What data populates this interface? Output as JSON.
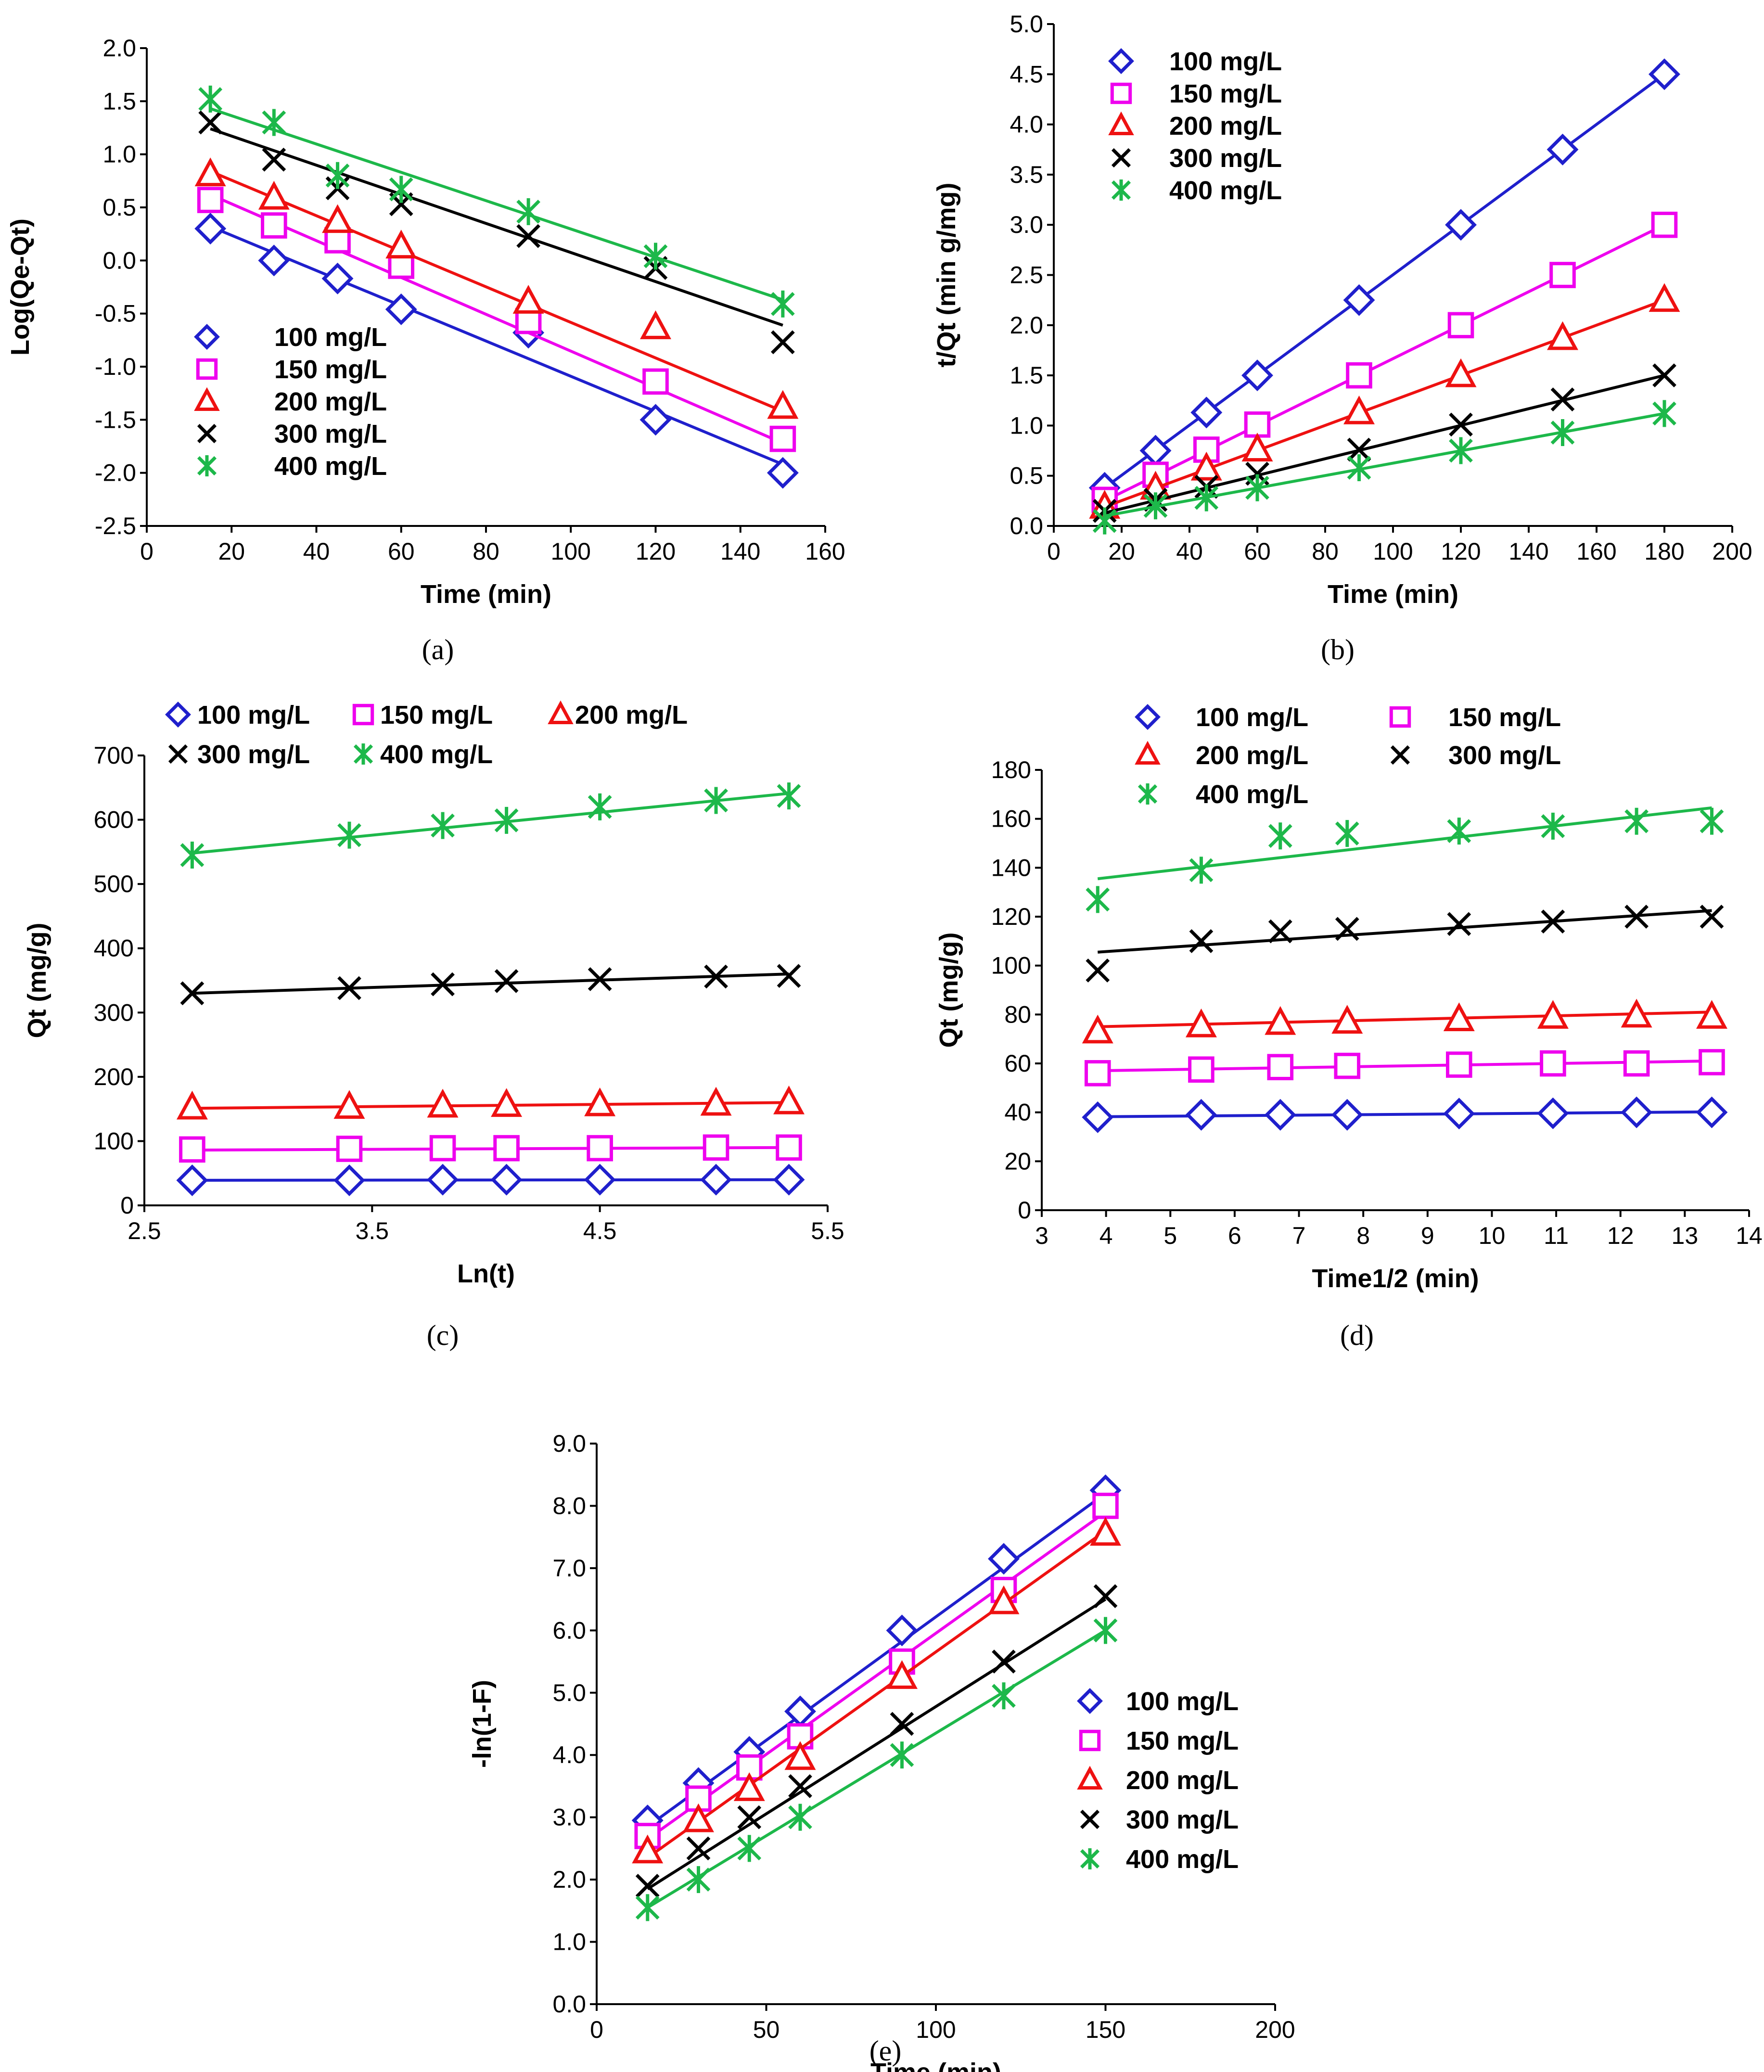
{
  "colors": {
    "100 mg/L": "#1f1fcc",
    "150 mg/L": "#ee00ee",
    "200 mg/L": "#ee1111",
    "300 mg/L": "#000000",
    "400 mg/L": "#1db84a"
  },
  "chart_data": [
    {
      "id": "a",
      "type": "scatter",
      "caption": "(a)",
      "xlabel": "Time (min)",
      "ylabel": "Log(Qe-Qt)",
      "xlim": [
        0,
        160
      ],
      "ylim": [
        -2.5,
        2.0
      ],
      "xticks": [
        0,
        20,
        40,
        60,
        80,
        100,
        120,
        140,
        160
      ],
      "yticks": [
        -2.5,
        -2.0,
        -1.5,
        -1.0,
        -0.5,
        0.0,
        0.5,
        1.0,
        1.5,
        2.0
      ],
      "ytick_decimals": 1,
      "legend_position": "bottom-left",
      "series": [
        {
          "name": "100 mg/L",
          "marker": "diamond",
          "x": [
            15,
            30,
            45,
            60,
            90,
            120,
            150
          ],
          "y": [
            0.3,
            0.0,
            -0.17,
            -0.46,
            -0.68,
            -1.5,
            -2.0
          ],
          "fit": [
            [
              15,
              0.32
            ],
            [
              150,
              -1.92
            ]
          ]
        },
        {
          "name": "150 mg/L",
          "marker": "square",
          "x": [
            15,
            30,
            45,
            60,
            90,
            120,
            150
          ],
          "y": [
            0.57,
            0.33,
            0.19,
            -0.05,
            -0.57,
            -1.14,
            -1.68
          ],
          "fit": [
            [
              15,
              0.62
            ],
            [
              150,
              -1.72
            ]
          ]
        },
        {
          "name": "200 mg/L",
          "marker": "triangle",
          "x": [
            15,
            30,
            45,
            60,
            90,
            120,
            150
          ],
          "y": [
            0.81,
            0.59,
            0.37,
            0.13,
            -0.39,
            -0.63,
            -1.38
          ],
          "fit": [
            [
              15,
              0.84
            ],
            [
              150,
              -1.42
            ]
          ]
        },
        {
          "name": "300 mg/L",
          "marker": "x",
          "x": [
            15,
            30,
            45,
            60,
            90,
            120,
            150
          ],
          "y": [
            1.3,
            0.95,
            0.68,
            0.53,
            0.23,
            -0.07,
            -0.77
          ],
          "fit": [
            [
              15,
              1.24
            ],
            [
              150,
              -0.61
            ]
          ]
        },
        {
          "name": "400 mg/L",
          "marker": "star",
          "x": [
            15,
            30,
            45,
            60,
            90,
            120,
            150
          ],
          "y": [
            1.52,
            1.3,
            0.8,
            0.67,
            0.46,
            0.04,
            -0.41
          ],
          "fit": [
            [
              15,
              1.43
            ],
            [
              150,
              -0.37
            ]
          ]
        }
      ]
    },
    {
      "id": "b",
      "type": "scatter",
      "caption": "(b)",
      "xlabel": "Time (min)",
      "ylabel": "t/Qt (min g/mg)",
      "xlim": [
        0,
        200
      ],
      "ylim": [
        0,
        5.0
      ],
      "xticks": [
        0,
        20,
        40,
        60,
        80,
        100,
        120,
        140,
        160,
        180,
        200
      ],
      "yticks": [
        0.0,
        0.5,
        1.0,
        1.5,
        2.0,
        2.5,
        3.0,
        3.5,
        4.0,
        4.5,
        5.0
      ],
      "ytick_decimals": 1,
      "legend_position": "top-left",
      "series": [
        {
          "name": "100 mg/L",
          "marker": "diamond",
          "x": [
            15,
            30,
            45,
            60,
            90,
            120,
            150,
            180
          ],
          "y": [
            0.38,
            0.75,
            1.13,
            1.5,
            2.25,
            3.0,
            3.75,
            4.5
          ],
          "fit": [
            [
              15,
              0.38
            ],
            [
              180,
              4.5
            ]
          ]
        },
        {
          "name": "150 mg/L",
          "marker": "square",
          "x": [
            15,
            30,
            45,
            60,
            90,
            120,
            150,
            180
          ],
          "y": [
            0.26,
            0.51,
            0.76,
            1.01,
            1.5,
            2.0,
            2.5,
            3.0
          ],
          "fit": [
            [
              15,
              0.25
            ],
            [
              180,
              3.0
            ]
          ]
        },
        {
          "name": "200 mg/L",
          "marker": "triangle",
          "x": [
            15,
            30,
            45,
            60,
            90,
            120,
            150,
            180
          ],
          "y": [
            0.19,
            0.38,
            0.57,
            0.76,
            1.13,
            1.5,
            1.87,
            2.25
          ],
          "fit": [
            [
              15,
              0.19
            ],
            [
              180,
              2.25
            ]
          ]
        },
        {
          "name": "300 mg/L",
          "marker": "x",
          "x": [
            15,
            30,
            45,
            60,
            90,
            120,
            150,
            180
          ],
          "y": [
            0.15,
            0.26,
            0.39,
            0.52,
            0.76,
            1.01,
            1.26,
            1.5
          ],
          "fit": [
            [
              15,
              0.13
            ],
            [
              180,
              1.5
            ]
          ]
        },
        {
          "name": "400 mg/L",
          "marker": "star",
          "x": [
            15,
            30,
            45,
            60,
            90,
            120,
            150,
            180
          ],
          "y": [
            0.05,
            0.2,
            0.28,
            0.38,
            0.58,
            0.75,
            0.93,
            1.12
          ],
          "fit": [
            [
              15,
              0.1
            ],
            [
              180,
              1.12
            ]
          ]
        }
      ]
    },
    {
      "id": "c",
      "type": "scatter",
      "caption": "(c)",
      "xlabel": "Ln(t)",
      "ylabel": "Qt (mg/g)",
      "xlim": [
        2.5,
        5.5
      ],
      "ylim": [
        0,
        700
      ],
      "xticks": [
        2.5,
        3.5,
        4.5,
        5.5
      ],
      "yticks": [
        0,
        100,
        200,
        300,
        400,
        500,
        600,
        700
      ],
      "ytick_decimals": 0,
      "legend_position": "top",
      "series": [
        {
          "name": "100 mg/L",
          "marker": "diamond",
          "x": [
            2.71,
            3.4,
            3.81,
            4.09,
            4.5,
            5.01,
            5.33
          ],
          "y": [
            39,
            39,
            40,
            40,
            40,
            40,
            40
          ],
          "fit": [
            [
              2.71,
              39
            ],
            [
              5.33,
              40
            ]
          ]
        },
        {
          "name": "150 mg/L",
          "marker": "square",
          "x": [
            2.71,
            3.4,
            3.81,
            4.09,
            4.5,
            5.01,
            5.33
          ],
          "y": [
            87,
            88,
            89,
            89,
            89,
            90,
            90
          ],
          "fit": [
            [
              2.71,
              86
            ],
            [
              5.33,
              90
            ]
          ]
        },
        {
          "name": "200 mg/L",
          "marker": "triangle",
          "x": [
            2.71,
            3.4,
            3.81,
            4.09,
            4.5,
            5.01,
            5.33
          ],
          "y": [
            152,
            153,
            155,
            156,
            157,
            158,
            160
          ],
          "fit": [
            [
              2.71,
              151
            ],
            [
              5.33,
              160
            ]
          ]
        },
        {
          "name": "300 mg/L",
          "marker": "x",
          "x": [
            2.71,
            3.4,
            3.81,
            4.09,
            4.5,
            5.01,
            5.33
          ],
          "y": [
            330,
            338,
            344,
            349,
            352,
            356,
            357
          ],
          "fit": [
            [
              2.71,
              330
            ],
            [
              5.33,
              360
            ]
          ]
        },
        {
          "name": "400 mg/L",
          "marker": "star",
          "x": [
            2.71,
            3.4,
            3.81,
            4.09,
            4.5,
            5.01,
            5.33
          ],
          "y": [
            545,
            576,
            591,
            599,
            620,
            630,
            637
          ],
          "fit": [
            [
              2.71,
              548
            ],
            [
              5.33,
              641
            ]
          ]
        }
      ]
    },
    {
      "id": "d",
      "type": "scatter",
      "caption": "(d)",
      "xlabel": "Time1/2 (min)",
      "ylabel": "Qt (mg/g)",
      "xlim": [
        3,
        14
      ],
      "ylim": [
        0,
        180
      ],
      "xticks": [
        3,
        4,
        5,
        6,
        7,
        8,
        9,
        10,
        11,
        12,
        13,
        14
      ],
      "yticks": [
        0,
        20,
        40,
        60,
        80,
        100,
        120,
        140,
        160,
        180
      ],
      "ytick_decimals": 0,
      "legend_position": "top",
      "series": [
        {
          "name": "100 mg/L",
          "marker": "diamond",
          "x": [
            3.87,
            5.48,
            6.71,
            7.75,
            9.49,
            10.95,
            12.25,
            13.42
          ],
          "y": [
            38,
            39,
            39,
            39,
            39.5,
            39.6,
            40,
            40
          ],
          "fit": [
            [
              3.87,
              38.2
            ],
            [
              13.42,
              40.2
            ]
          ]
        },
        {
          "name": "150 mg/L",
          "marker": "square",
          "x": [
            3.87,
            5.48,
            6.71,
            7.75,
            9.49,
            10.95,
            12.25,
            13.42
          ],
          "y": [
            56,
            57.5,
            58.5,
            59,
            59.5,
            60,
            60,
            60.5
          ],
          "fit": [
            [
              3.87,
              57
            ],
            [
              13.42,
              61
            ]
          ]
        },
        {
          "name": "200 mg/L",
          "marker": "triangle",
          "x": [
            3.87,
            5.48,
            6.71,
            7.75,
            9.49,
            10.95,
            12.25,
            13.42
          ],
          "y": [
            73,
            75.5,
            76.5,
            77,
            78,
            79,
            79.5,
            79
          ],
          "fit": [
            [
              3.87,
              75
            ],
            [
              13.42,
              81
            ]
          ]
        },
        {
          "name": "300 mg/L",
          "marker": "x",
          "x": [
            3.87,
            5.48,
            6.71,
            7.75,
            9.49,
            10.95,
            12.25,
            13.42
          ],
          "y": [
            98,
            110,
            114,
            115,
            117,
            118,
            120,
            120
          ],
          "fit": [
            [
              3.87,
              105.5
            ],
            [
              13.42,
              122.5
            ]
          ]
        },
        {
          "name": "400 mg/L",
          "marker": "star",
          "x": [
            3.87,
            5.48,
            6.71,
            7.75,
            9.49,
            10.95,
            12.25,
            13.42
          ],
          "y": [
            127,
            139,
            153,
            154,
            155,
            157,
            159,
            159
          ],
          "fit": [
            [
              3.87,
              135.5
            ],
            [
              13.42,
              164.5
            ]
          ]
        }
      ]
    },
    {
      "id": "e",
      "type": "scatter",
      "caption": "(e)",
      "xlabel": "Time (min)",
      "ylabel": "-ln(1-F)",
      "xlim": [
        0,
        200
      ],
      "ylim": [
        0,
        9.0
      ],
      "xticks": [
        0,
        50,
        100,
        150,
        200
      ],
      "yticks": [
        0.0,
        1.0,
        2.0,
        3.0,
        4.0,
        5.0,
        6.0,
        7.0,
        8.0,
        9.0
      ],
      "ytick_decimals": 1,
      "legend_position": "right",
      "series": [
        {
          "name": "100 mg/L",
          "marker": "diamond",
          "x": [
            15,
            30,
            45,
            60,
            90,
            120,
            150
          ],
          "y": [
            2.95,
            3.55,
            4.05,
            4.7,
            6.0,
            7.15,
            8.25
          ],
          "fit": [
            [
              15,
              2.85
            ],
            [
              150,
              8.2
            ]
          ]
        },
        {
          "name": "150 mg/L",
          "marker": "square",
          "x": [
            15,
            30,
            45,
            60,
            90,
            120,
            150
          ],
          "y": [
            2.7,
            3.3,
            3.8,
            4.3,
            5.5,
            6.65,
            8.0
          ],
          "fit": [
            [
              15,
              2.65
            ],
            [
              150,
              7.9
            ]
          ]
        },
        {
          "name": "200 mg/L",
          "marker": "triangle",
          "x": [
            15,
            30,
            45,
            60,
            90,
            120,
            150
          ],
          "y": [
            2.45,
            2.95,
            3.45,
            3.95,
            5.25,
            6.45,
            7.55
          ],
          "fit": [
            [
              15,
              2.35
            ],
            [
              150,
              7.6
            ]
          ]
        },
        {
          "name": "300 mg/L",
          "marker": "x",
          "x": [
            15,
            30,
            45,
            60,
            90,
            120,
            150
          ],
          "y": [
            1.9,
            2.5,
            3.0,
            3.5,
            4.5,
            5.5,
            6.55
          ],
          "fit": [
            [
              15,
              1.85
            ],
            [
              150,
              6.5
            ]
          ]
        },
        {
          "name": "400 mg/L",
          "marker": "star",
          "x": [
            15,
            30,
            45,
            60,
            90,
            120,
            150
          ],
          "y": [
            1.55,
            2.0,
            2.5,
            3.0,
            4.0,
            4.95,
            6.0
          ],
          "fit": [
            [
              15,
              1.55
            ],
            [
              150,
              6.0
            ]
          ]
        }
      ]
    }
  ]
}
